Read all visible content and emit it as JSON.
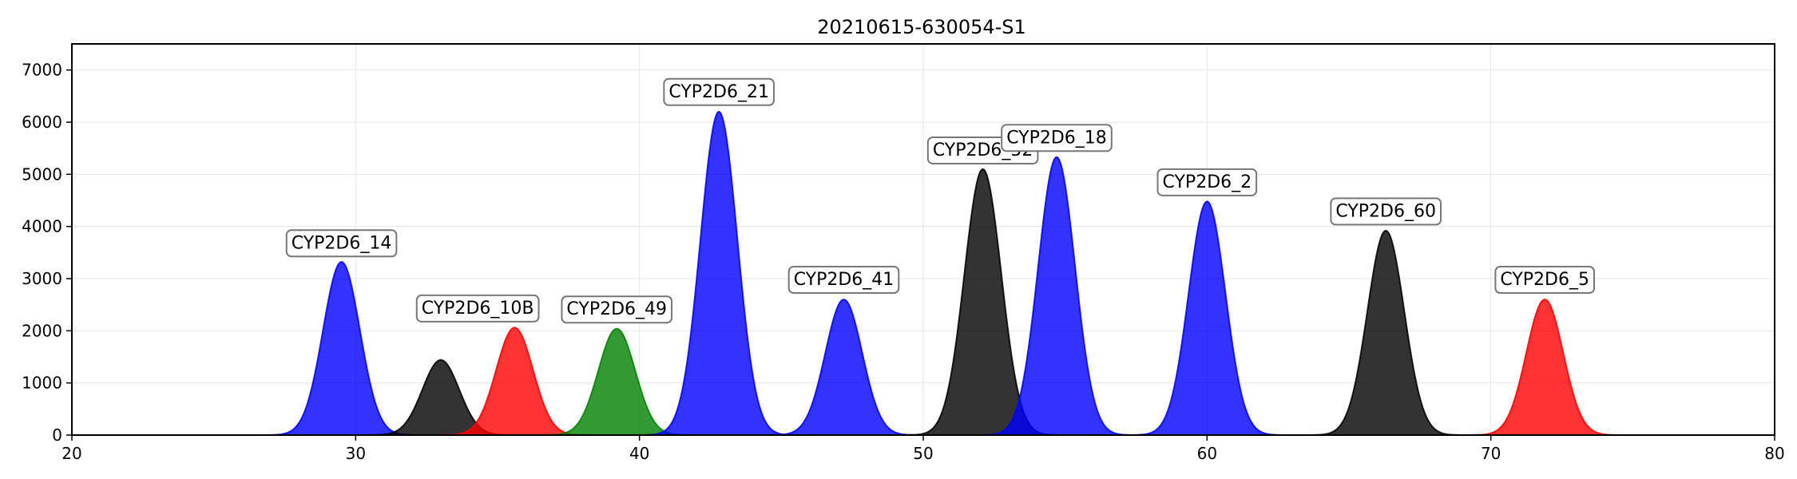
{
  "chart_data": {
    "type": "area",
    "title": "20210615-630054-S1",
    "xlabel": "",
    "ylabel": "",
    "xlim": [
      20,
      80
    ],
    "ylim": [
      0,
      7500
    ],
    "xticks": [
      20,
      30,
      40,
      50,
      60,
      70,
      80
    ],
    "yticks": [
      0,
      1000,
      2000,
      3000,
      4000,
      5000,
      6000,
      7000
    ],
    "grid": true,
    "colors": {
      "blue": "#0000ff",
      "black": "#000000",
      "red": "#ff0000",
      "green": "#008000"
    },
    "series": [
      {
        "label": "CYP2D6_14",
        "center": 29.5,
        "height": 3320,
        "sigma": 0.65,
        "color": "blue"
      },
      {
        "label": "CYP2D6_10B",
        "center": 33.0,
        "height": 1440,
        "sigma": 0.65,
        "color": "black"
      },
      {
        "label": "CYP2D6_10B",
        "center": 35.6,
        "height": 2060,
        "sigma": 0.65,
        "color": "red"
      },
      {
        "label": "CYP2D6_49",
        "center": 39.2,
        "height": 2040,
        "sigma": 0.65,
        "color": "green"
      },
      {
        "label": "CYP2D6_21",
        "center": 42.8,
        "height": 6200,
        "sigma": 0.65,
        "color": "blue"
      },
      {
        "label": "CYP2D6_41",
        "center": 47.2,
        "height": 2600,
        "sigma": 0.65,
        "color": "blue"
      },
      {
        "label": "CYP2D6_52",
        "center": 52.1,
        "height": 5100,
        "sigma": 0.65,
        "color": "black"
      },
      {
        "label": "CYP2D6_18",
        "center": 54.7,
        "height": 5330,
        "sigma": 0.65,
        "color": "blue"
      },
      {
        "label": "CYP2D6_2",
        "center": 60.0,
        "height": 4480,
        "sigma": 0.65,
        "color": "blue"
      },
      {
        "label": "CYP2D6_60",
        "center": 66.3,
        "height": 3920,
        "sigma": 0.65,
        "color": "black"
      },
      {
        "label": "CYP2D6_5",
        "center": 71.9,
        "height": 2600,
        "sigma": 0.65,
        "color": "red"
      }
    ],
    "annotations": [
      {
        "text": "CYP2D6_14",
        "x": 29.5,
        "y": 3700
      },
      {
        "text": "CYP2D6_10B",
        "x": 34.3,
        "y": 2450
      },
      {
        "text": "CYP2D6_49",
        "x": 39.2,
        "y": 2430
      },
      {
        "text": "CYP2D6_21",
        "x": 42.8,
        "y": 6600
      },
      {
        "text": "CYP2D6_41",
        "x": 47.2,
        "y": 3000
      },
      {
        "text": "CYP2D6_52",
        "x": 52.1,
        "y": 5480
      },
      {
        "text": "CYP2D6_18",
        "x": 54.7,
        "y": 5720
      },
      {
        "text": "CYP2D6_2",
        "x": 60.0,
        "y": 4870
      },
      {
        "text": "CYP2D6_60",
        "x": 66.3,
        "y": 4310
      },
      {
        "text": "CYP2D6_5",
        "x": 71.9,
        "y": 3000
      }
    ]
  }
}
